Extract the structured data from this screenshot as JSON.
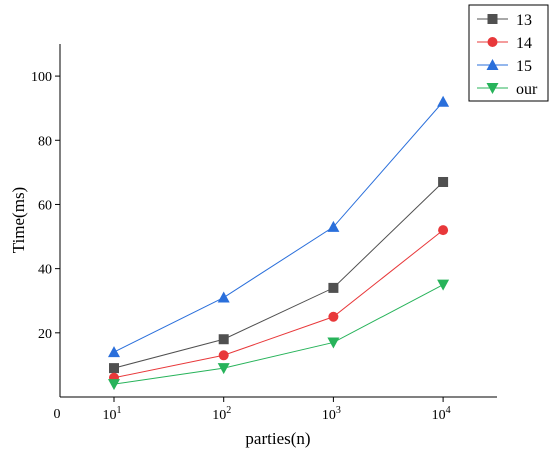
{
  "chart_data": {
    "type": "line",
    "title": "",
    "xlabel": "parties(n)",
    "ylabel": "Time(ms)",
    "x_scale": "log",
    "x_ticks": [
      {
        "base": "10",
        "exp": "1"
      },
      {
        "base": "10",
        "exp": "2"
      },
      {
        "base": "10",
        "exp": "3"
      },
      {
        "base": "10",
        "exp": "4"
      }
    ],
    "x_origin_label": "0",
    "x": [
      10,
      100,
      1000,
      10000
    ],
    "y_ticks": [
      "20",
      "40",
      "60",
      "80",
      "100"
    ],
    "ylim": [
      0,
      110
    ],
    "grid": false,
    "legend_position": "top-right",
    "series": [
      {
        "name": "13",
        "values": [
          9,
          18,
          34,
          67
        ],
        "color": "#505050",
        "marker": "square"
      },
      {
        "name": "14",
        "values": [
          6,
          13,
          25,
          52
        ],
        "color": "#e8383a",
        "marker": "circle"
      },
      {
        "name": "15",
        "values": [
          14,
          31,
          53,
          92
        ],
        "color": "#2a6fdb",
        "marker": "triangle-up"
      },
      {
        "name": "our",
        "values": [
          4,
          9,
          17,
          35
        ],
        "color": "#27b35a",
        "marker": "triangle-down"
      }
    ]
  }
}
